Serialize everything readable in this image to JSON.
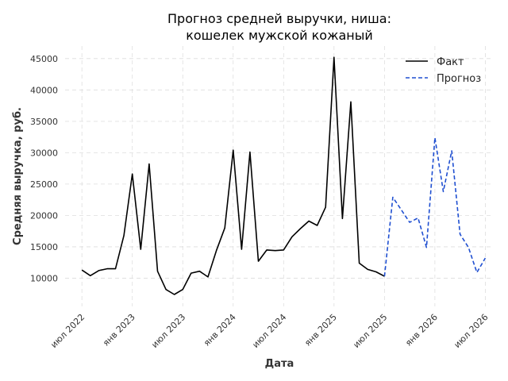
{
  "chart_data": {
    "type": "line",
    "title_lines": [
      "Прогноз средней выручки, ниша:",
      "кошелек мужской кожаный"
    ],
    "xlabel": "Дата",
    "ylabel": "Средняя выручка, руб.",
    "x_ticks": [
      {
        "label": "июл 2022",
        "date": "2022-07"
      },
      {
        "label": "янв 2023",
        "date": "2023-01"
      },
      {
        "label": "июл 2023",
        "date": "2023-07"
      },
      {
        "label": "янв 2024",
        "date": "2024-01"
      },
      {
        "label": "июл 2024",
        "date": "2024-07"
      },
      {
        "label": "янв 2025",
        "date": "2025-01"
      },
      {
        "label": "июл 2025",
        "date": "2025-07"
      },
      {
        "label": "янв 2026",
        "date": "2026-01"
      },
      {
        "label": "июл 2026",
        "date": "2026-07"
      }
    ],
    "y_ticks": [
      10000,
      15000,
      20000,
      25000,
      30000,
      35000,
      40000,
      45000
    ],
    "xlim": [
      "2022-05",
      "2026-08"
    ],
    "ylim": [
      5500,
      47000
    ],
    "grid": true,
    "legend_position": "top-right",
    "series": [
      {
        "name": "Факт",
        "color": "#000000",
        "dash": "solid",
        "points": [
          [
            "2022-07",
            11300
          ],
          [
            "2022-08",
            10400
          ],
          [
            "2022-09",
            11200
          ],
          [
            "2022-10",
            11500
          ],
          [
            "2022-11",
            11500
          ],
          [
            "2022-12",
            16800
          ],
          [
            "2023-01",
            26600
          ],
          [
            "2023-02",
            14600
          ],
          [
            "2023-03",
            28200
          ],
          [
            "2023-04",
            11100
          ],
          [
            "2023-05",
            8200
          ],
          [
            "2023-06",
            7400
          ],
          [
            "2023-07",
            8200
          ],
          [
            "2023-08",
            10800
          ],
          [
            "2023-09",
            11100
          ],
          [
            "2023-10",
            10200
          ],
          [
            "2023-11",
            14400
          ],
          [
            "2023-12",
            18000
          ],
          [
            "2024-01",
            30400
          ],
          [
            "2024-02",
            14600
          ],
          [
            "2024-03",
            30100
          ],
          [
            "2024-04",
            12700
          ],
          [
            "2024-05",
            14500
          ],
          [
            "2024-06",
            14400
          ],
          [
            "2024-07",
            14500
          ],
          [
            "2024-08",
            16600
          ],
          [
            "2024-09",
            17900
          ],
          [
            "2024-10",
            19100
          ],
          [
            "2024-11",
            18400
          ],
          [
            "2024-12",
            21300
          ],
          [
            "2025-01",
            45200
          ],
          [
            "2025-02",
            19500
          ],
          [
            "2025-03",
            38100
          ],
          [
            "2025-04",
            12400
          ],
          [
            "2025-05",
            11400
          ],
          [
            "2025-06",
            11000
          ],
          [
            "2025-07",
            10300
          ]
        ]
      },
      {
        "name": "Прогноз",
        "color": "#1f4fd1",
        "dash": "dashed",
        "points": [
          [
            "2025-07",
            10300
          ],
          [
            "2025-08",
            22900
          ],
          [
            "2025-09",
            20900
          ],
          [
            "2025-10",
            18900
          ],
          [
            "2025-11",
            19600
          ],
          [
            "2025-12",
            14900
          ],
          [
            "2026-01",
            32400
          ],
          [
            "2026-02",
            23800
          ],
          [
            "2026-03",
            30300
          ],
          [
            "2026-04",
            17000
          ],
          [
            "2026-05",
            14900
          ],
          [
            "2026-06",
            10900
          ],
          [
            "2026-07",
            13200
          ]
        ]
      }
    ]
  }
}
